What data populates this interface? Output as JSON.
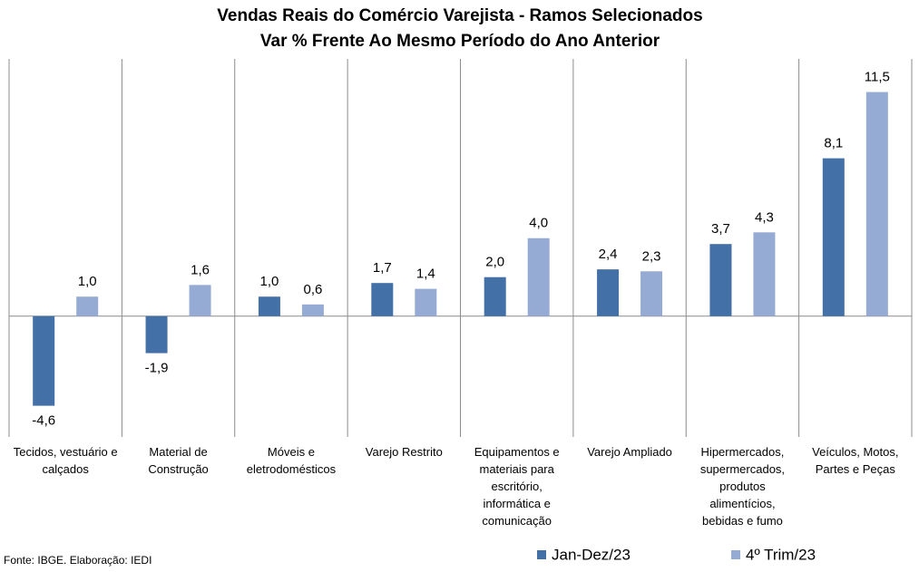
{
  "chart_data": {
    "type": "bar",
    "title": "Vendas Reais do Comércio Varejista - Ramos Selecionados",
    "subtitle": "Var % Frente Ao Mesmo Período do Ano Anterior",
    "categories": [
      "Tecidos, vestuário e calçados",
      "Material de Construção",
      "Móveis e eletrodomésticos",
      "Varejo Restrito",
      "Equipamentos e materiais para escritório, informática e comunicação",
      "Varejo Ampliado",
      "Hipermercados, supermercados, produtos alimentícios, bebidas e fumo",
      "Veículos, Motos, Partes e Peças"
    ],
    "series": [
      {
        "name": "Jan-Dez/23",
        "color": "#4470a8",
        "values": [
          -4.6,
          -1.9,
          1.0,
          1.7,
          2.0,
          2.4,
          3.7,
          8.1
        ],
        "value_labels": [
          "-4,6",
          "-1,9",
          "1,0",
          "1,7",
          "2,0",
          "2,4",
          "3,7",
          "8,1"
        ]
      },
      {
        "name": "4º Trim/23",
        "color": "#95abd4",
        "values": [
          1.0,
          1.6,
          0.6,
          1.4,
          4.0,
          2.3,
          4.3,
          11.5
        ],
        "value_labels": [
          "1,0",
          "1,6",
          "0,6",
          "1,4",
          "4,0",
          "2,3",
          "4,3",
          "11,5"
        ]
      }
    ],
    "ylim": [
      -6.2,
      13.2
    ],
    "source": "Fonte: IBGE. Elaboração: IEDI"
  }
}
